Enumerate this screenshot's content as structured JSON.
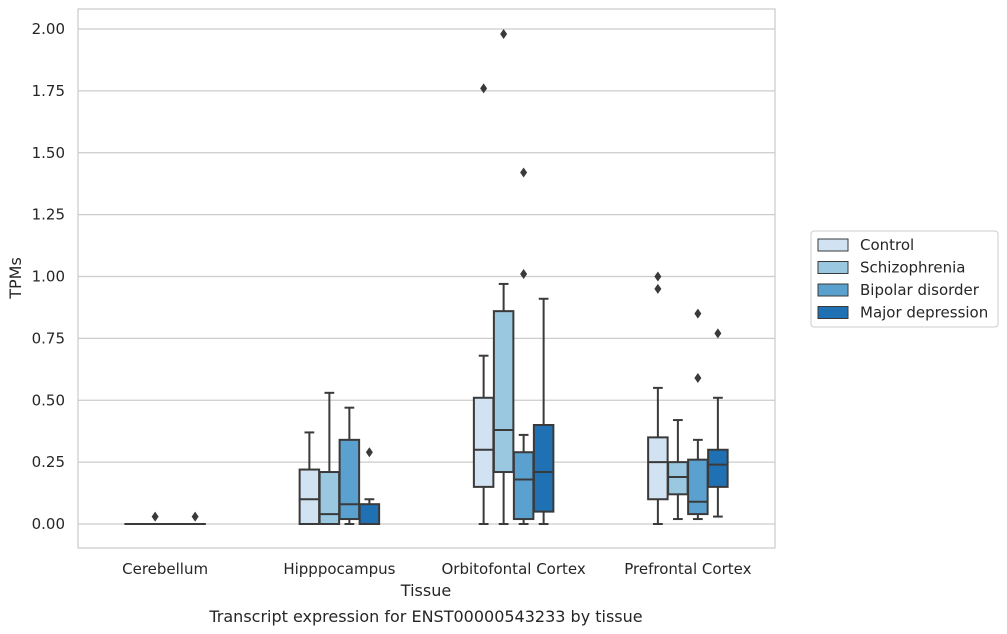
{
  "chart_data": {
    "type": "boxplot",
    "title": "",
    "caption": "Transcript expression for ENST00000543233 by tissue",
    "xlabel": "Tissue",
    "ylabel": "TPMs",
    "ylim": [
      -0.1,
      2.08
    ],
    "yticks": [
      "0.00",
      "0.25",
      "0.50",
      "0.75",
      "1.00",
      "1.25",
      "1.50",
      "1.75",
      "2.00"
    ],
    "ytick_values": [
      0,
      0.25,
      0.5,
      0.75,
      1.0,
      1.25,
      1.5,
      1.75,
      2.0
    ],
    "grid": "horizontal",
    "legend_position": "right",
    "categories": [
      "Cerebellum",
      "Hipppocampus",
      "Orbitofontal Cortex",
      "Prefrontal Cortex"
    ],
    "series": [
      {
        "name": "Control",
        "color": "#d1e2f2",
        "boxes": [
          {
            "whislo": 0,
            "q1": 0,
            "med": 0,
            "q3": 0,
            "whishi": 0,
            "fliers": []
          },
          {
            "whislo": 0,
            "q1": 0,
            "med": 0.1,
            "q3": 0.22,
            "whishi": 0.37,
            "fliers": []
          },
          {
            "whislo": 0,
            "q1": 0.15,
            "med": 0.3,
            "q3": 0.51,
            "whishi": 0.68,
            "fliers": [
              1.76
            ]
          },
          {
            "whislo": 0,
            "q1": 0.1,
            "med": 0.25,
            "q3": 0.35,
            "whishi": 0.55,
            "fliers": [
              0.95,
              1.0
            ]
          }
        ]
      },
      {
        "name": "Schizophrenia",
        "color": "#9ac8e0",
        "boxes": [
          {
            "whislo": 0,
            "q1": 0,
            "med": 0,
            "q3": 0,
            "whishi": 0,
            "fliers": [
              0.03
            ]
          },
          {
            "whislo": 0,
            "q1": 0,
            "med": 0.04,
            "q3": 0.21,
            "whishi": 0.53,
            "fliers": []
          },
          {
            "whislo": 0,
            "q1": 0.21,
            "med": 0.38,
            "q3": 0.86,
            "whishi": 0.97,
            "fliers": [
              1.98
            ]
          },
          {
            "whislo": 0.02,
            "q1": 0.12,
            "med": 0.19,
            "q3": 0.25,
            "whishi": 0.42,
            "fliers": []
          }
        ]
      },
      {
        "name": "Bipolar disorder",
        "color": "#5aa1cf",
        "boxes": [
          {
            "whislo": 0,
            "q1": 0,
            "med": 0,
            "q3": 0,
            "whishi": 0,
            "fliers": []
          },
          {
            "whislo": 0,
            "q1": 0.02,
            "med": 0.08,
            "q3": 0.34,
            "whishi": 0.47,
            "fliers": []
          },
          {
            "whislo": 0,
            "q1": 0.02,
            "med": 0.18,
            "q3": 0.29,
            "whishi": 0.36,
            "fliers": [
              1.01,
              1.42
            ]
          },
          {
            "whislo": 0.02,
            "q1": 0.04,
            "med": 0.09,
            "q3": 0.26,
            "whishi": 0.34,
            "fliers": [
              0.59,
              0.85
            ]
          }
        ]
      },
      {
        "name": "Major depression",
        "color": "#2070b4",
        "boxes": [
          {
            "whislo": 0,
            "q1": 0,
            "med": 0,
            "q3": 0,
            "whishi": 0,
            "fliers": [
              0.03
            ]
          },
          {
            "whislo": 0,
            "q1": 0,
            "med": 0,
            "q3": 0.08,
            "whishi": 0.1,
            "fliers": [
              0.29
            ]
          },
          {
            "whislo": 0,
            "q1": 0.05,
            "med": 0.21,
            "q3": 0.4,
            "whishi": 0.91,
            "fliers": []
          },
          {
            "whislo": 0.03,
            "q1": 0.15,
            "med": 0.24,
            "q3": 0.3,
            "whishi": 0.51,
            "fliers": [
              0.77
            ]
          }
        ]
      }
    ]
  }
}
